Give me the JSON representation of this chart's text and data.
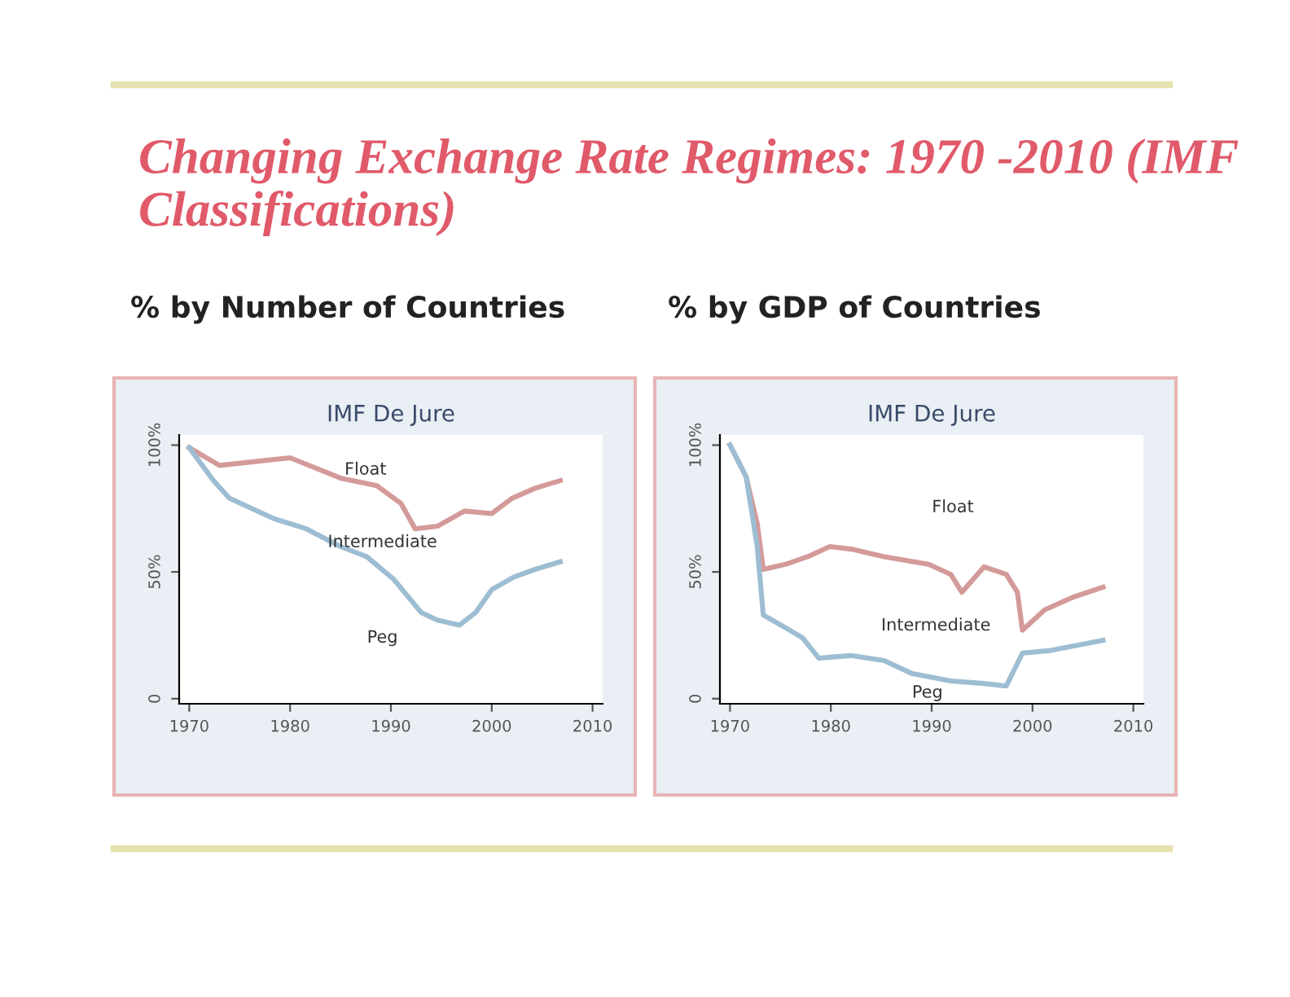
{
  "chart_data": [
    {
      "type": "line",
      "title": "IMF De Jure",
      "subtitle": "% by Number of Countries",
      "annotations": [
        "Changing Exchange Rate Regimes: 1970 -2010 (IMF Classifications)",
        "Float",
        "Intermediate",
        "Peg"
      ],
      "xlim": [
        1969,
        2011
      ],
      "xticks": [
        1970,
        1980,
        1990,
        2000,
        2010
      ],
      "ylim": [
        -2,
        104
      ],
      "yticks": [
        {
          "value": 0,
          "label": "0"
        },
        {
          "value": 50,
          "label": "50%"
        },
        {
          "value": 100,
          "label": "100%"
        }
      ],
      "grid": false,
      "marker": "none",
      "line_style": "solid",
      "series": [
        {
          "color": "#d49a9a",
          "x": [
            1970,
            1973,
            1980,
            1985,
            1988.6,
            1991,
            1992.4,
            1994.6,
            1997.3,
            2000,
            2002,
            2004.3,
            2006.8
          ],
          "values": [
            99,
            92,
            95,
            87,
            84,
            77,
            67,
            68,
            74,
            73,
            79,
            83,
            86
          ]
        },
        {
          "color": "#9dbdd2",
          "x": [
            1970,
            1972.4,
            1974,
            1978.4,
            1981.6,
            1985,
            1987.6,
            1990.3,
            1993,
            1994.6,
            1996.8,
            1998.4,
            2000,
            2002.2,
            2004.3,
            2006.8
          ],
          "values": [
            99,
            86,
            79,
            71,
            67,
            60,
            56,
            47,
            34,
            31,
            29,
            34,
            43,
            48,
            51,
            54
          ]
        }
      ]
    },
    {
      "type": "line",
      "title": "IMF De Jure",
      "subtitle": "% by GDP of Countries",
      "annotations": [
        "Float",
        "Intermediate",
        "Peg"
      ],
      "xlim": [
        1969,
        2011
      ],
      "xticks": [
        1970,
        1980,
        1990,
        2000,
        2010
      ],
      "ylim": [
        -2,
        104
      ],
      "yticks": [
        {
          "value": 0,
          "label": "0"
        },
        {
          "value": 50,
          "label": "50%"
        },
        {
          "value": 100,
          "label": "100%"
        }
      ],
      "grid": false,
      "marker": "none",
      "line_style": "solid",
      "series": [
        {
          "color": "#d49a9a",
          "x": [
            1970,
            1971.6,
            1972.7,
            1973.3,
            1975.5,
            1977.7,
            1979.9,
            1982,
            1985.3,
            1989.7,
            1991.9,
            1993,
            1995.2,
            1997.4,
            1998.5,
            1999,
            2001.2,
            2004,
            2007
          ],
          "values": [
            100,
            87.5,
            69,
            51,
            53,
            56,
            60,
            59,
            56,
            53,
            49,
            42,
            52,
            49,
            42,
            27,
            35,
            40,
            44
          ]
        },
        {
          "color": "#9dbdd2",
          "x": [
            1970,
            1971.6,
            1972.7,
            1973.3,
            1975.5,
            1977.2,
            1978.8,
            1982,
            1985.3,
            1988,
            1991.9,
            1995.2,
            1997.4,
            1999,
            2001.8,
            2007
          ],
          "values": [
            100,
            87.5,
            60,
            33,
            28,
            24,
            16,
            17,
            15,
            10,
            7,
            6,
            5,
            18,
            19,
            23
          ]
        }
      ]
    }
  ]
}
